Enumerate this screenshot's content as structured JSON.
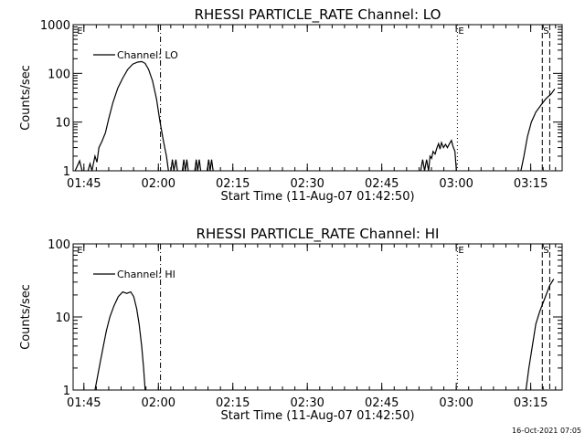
{
  "footer_timestamp": "16-Oct-2021 07:05",
  "chart_data": [
    {
      "type": "line",
      "title": "RHESSI PARTICLE_RATE Channel: LO",
      "xlabel": "Start Time (11-Aug-07 01:42:50)",
      "ylabel": "Counts/sec",
      "y_scale": "log",
      "ylim": [
        1,
        1000
      ],
      "y_ticks": [
        1,
        10,
        100,
        1000
      ],
      "y_tick_labels": [
        "1",
        "10",
        "100",
        "1000"
      ],
      "xlim_minutes": [
        0,
        98.5
      ],
      "x_ticks_minutes": [
        2.17,
        17.17,
        32.17,
        47.17,
        62.17,
        77.17,
        92.17
      ],
      "x_tick_labels": [
        "01:45",
        "02:00",
        "02:15",
        "02:30",
        "02:45",
        "03:00",
        "03:15"
      ],
      "grid": false,
      "legend": {
        "position": "top-left",
        "entries": [
          "Channel: LO"
        ]
      },
      "markers": [
        {
          "label": "E",
          "x_minutes": 0.6,
          "style": "none"
        },
        {
          "label": "",
          "x_minutes": 17.6,
          "style": "dashdot"
        },
        {
          "label": "E",
          "x_minutes": 77.4,
          "style": "dotted"
        },
        {
          "label": "S",
          "x_minutes": 94.5,
          "style": "dashed"
        },
        {
          "label": "",
          "x_minutes": 96.0,
          "style": "dashed"
        }
      ],
      "series": [
        {
          "name": "Channel: LO",
          "segments": [
            [
              [
                0.4,
                1
              ],
              [
                1.3,
                1.6
              ],
              [
                1.8,
                1
              ]
            ],
            [
              [
                3.0,
                1
              ],
              [
                3.4,
                1.4
              ],
              [
                3.8,
                1
              ],
              [
                4.4,
                2
              ],
              [
                4.8,
                1.5
              ],
              [
                5.2,
                3
              ],
              [
                5.8,
                4
              ],
              [
                6.5,
                6
              ],
              [
                7.2,
                12
              ],
              [
                8.0,
                25
              ],
              [
                9.0,
                50
              ],
              [
                10.0,
                80
              ],
              [
                11.0,
                120
              ],
              [
                12.0,
                155
              ],
              [
                13.0,
                170
              ],
              [
                13.8,
                175
              ],
              [
                14.5,
                160
              ],
              [
                15.2,
                120
              ],
              [
                16.0,
                70
              ],
              [
                16.8,
                30
              ],
              [
                17.5,
                10
              ],
              [
                18.2,
                4
              ],
              [
                18.8,
                2
              ],
              [
                19.2,
                1
              ]
            ],
            [
              [
                19.7,
                1
              ],
              [
                20.0,
                1.7
              ],
              [
                20.3,
                1
              ],
              [
                20.7,
                1.7
              ],
              [
                21.0,
                1
              ]
            ],
            [
              [
                22.0,
                1
              ],
              [
                22.3,
                1.7
              ],
              [
                22.6,
                1
              ],
              [
                22.9,
                1.7
              ],
              [
                23.2,
                1
              ]
            ],
            [
              [
                24.5,
                1
              ],
              [
                24.8,
                1.7
              ],
              [
                25.1,
                1
              ],
              [
                25.4,
                1.7
              ],
              [
                25.7,
                1
              ]
            ],
            [
              [
                27.0,
                1
              ],
              [
                27.3,
                1.7
              ],
              [
                27.6,
                1
              ],
              [
                27.9,
                1.7
              ],
              [
                28.2,
                1
              ]
            ],
            [
              [
                70.0,
                1
              ],
              [
                70.4,
                1.7
              ],
              [
                70.8,
                1
              ],
              [
                71.2,
                1.7
              ],
              [
                71.6,
                1
              ],
              [
                71.9,
                2
              ],
              [
                72.2,
                1.8
              ],
              [
                72.5,
                2.5
              ],
              [
                72.9,
                2.2
              ],
              [
                73.3,
                3
              ],
              [
                73.6,
                3.6
              ],
              [
                73.9,
                2.8
              ],
              [
                74.2,
                3.8
              ],
              [
                74.6,
                3
              ],
              [
                75.0,
                3.5
              ],
              [
                75.4,
                3
              ],
              [
                75.8,
                3.6
              ],
              [
                76.2,
                4.2
              ],
              [
                76.5,
                3.2
              ],
              [
                76.9,
                2.5
              ],
              [
                77.2,
                1
              ]
            ],
            [
              [
                90.2,
                1
              ],
              [
                90.8,
                2
              ],
              [
                91.5,
                5
              ],
              [
                92.3,
                10
              ],
              [
                93.2,
                16
              ],
              [
                94.2,
                22
              ],
              [
                95.2,
                30
              ],
              [
                96.3,
                38
              ],
              [
                97.0,
                48
              ]
            ]
          ]
        }
      ]
    },
    {
      "type": "line",
      "title": "RHESSI PARTICLE_RATE Channel: HI",
      "xlabel": "Start Time (11-Aug-07 01:42:50)",
      "ylabel": "Counts/sec",
      "y_scale": "log",
      "ylim": [
        1,
        100
      ],
      "y_ticks": [
        1,
        10,
        100
      ],
      "y_tick_labels": [
        "1",
        "10",
        "100"
      ],
      "xlim_minutes": [
        0,
        98.5
      ],
      "x_ticks_minutes": [
        2.17,
        17.17,
        32.17,
        47.17,
        62.17,
        77.17,
        92.17
      ],
      "x_tick_labels": [
        "01:45",
        "02:00",
        "02:15",
        "02:30",
        "02:45",
        "03:00",
        "03:15"
      ],
      "grid": false,
      "legend": {
        "position": "top-left",
        "entries": [
          "Channel: HI"
        ]
      },
      "markers": [
        {
          "label": "E",
          "x_minutes": 0.6,
          "style": "none"
        },
        {
          "label": "",
          "x_minutes": 17.6,
          "style": "dashdot"
        },
        {
          "label": "E",
          "x_minutes": 77.4,
          "style": "dotted"
        },
        {
          "label": "S",
          "x_minutes": 94.5,
          "style": "dashed"
        },
        {
          "label": "",
          "x_minutes": 96.0,
          "style": "dashed"
        }
      ],
      "series": [
        {
          "name": "Channel: HI",
          "segments": [
            [
              [
                4.4,
                1
              ],
              [
                4.9,
                1.5
              ],
              [
                5.5,
                2.5
              ],
              [
                6.1,
                4
              ],
              [
                6.7,
                6.5
              ],
              [
                7.4,
                10
              ],
              [
                8.2,
                14
              ],
              [
                9.1,
                19
              ],
              [
                10.0,
                22
              ],
              [
                10.8,
                21
              ],
              [
                11.6,
                22
              ],
              [
                12.2,
                19
              ],
              [
                12.8,
                13
              ],
              [
                13.3,
                8
              ],
              [
                13.8,
                4
              ],
              [
                14.2,
                2
              ],
              [
                14.5,
                1
              ]
            ],
            [
              [
                91.2,
                1
              ],
              [
                91.8,
                2
              ],
              [
                92.5,
                4
              ],
              [
                93.2,
                8
              ],
              [
                94.0,
                12
              ],
              [
                95.0,
                18
              ],
              [
                96.0,
                27
              ],
              [
                96.8,
                33
              ]
            ]
          ]
        }
      ]
    }
  ]
}
